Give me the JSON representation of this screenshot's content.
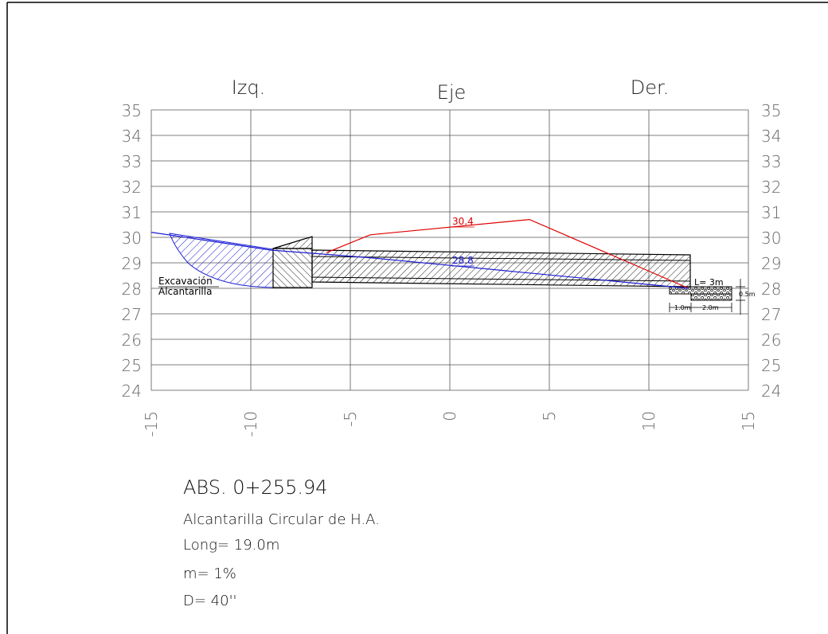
{
  "headers": {
    "left": "Izq.",
    "center": "Eje",
    "right": "Der."
  },
  "y_ticks": [
    "35",
    "34",
    "33",
    "32",
    "31",
    "30",
    "29",
    "28",
    "27",
    "26",
    "25",
    "24"
  ],
  "x_ticks": [
    "-15",
    "-10",
    "-5",
    "0",
    "5",
    "10",
    "15"
  ],
  "chart_data": {
    "type": "line",
    "xlim": [
      -15,
      15
    ],
    "ylim": [
      24,
      35
    ],
    "grid": true,
    "series": [
      {
        "name": "",
        "color": "#e00000",
        "x": [
          -6.2,
          -4,
          4,
          12
        ],
        "y": [
          29.4,
          30.1,
          30.7,
          28.0
        ]
      },
      {
        "name": "",
        "color": "#1a1ad4",
        "x": [
          -15,
          -9,
          -4,
          0,
          12
        ],
        "y": [
          30.2,
          29.5,
          29.2,
          28.9,
          28.0
        ]
      }
    ],
    "annotations": [
      "30.4",
      "28.8"
    ]
  },
  "labels": {
    "red_value": "30.4",
    "blue_value": "28.8",
    "excavation_line1": "Excavación",
    "excavation_line2": "Alcantarilla",
    "length_label": "L= 3m",
    "dim_1": "1.0m",
    "dim_2": "2.0m",
    "dim_3": "0.5m"
  },
  "info": {
    "abs": "ABS. 0+255.94",
    "description": "Alcantarilla Circular de H.A.",
    "length": "Long= 19.0m",
    "slope": "m= 1%",
    "diameter": "D= 40''"
  },
  "colors": {
    "red": "#e00000",
    "blue": "#1a1ad4",
    "grid": "#555555",
    "axis_text": "#666666"
  }
}
